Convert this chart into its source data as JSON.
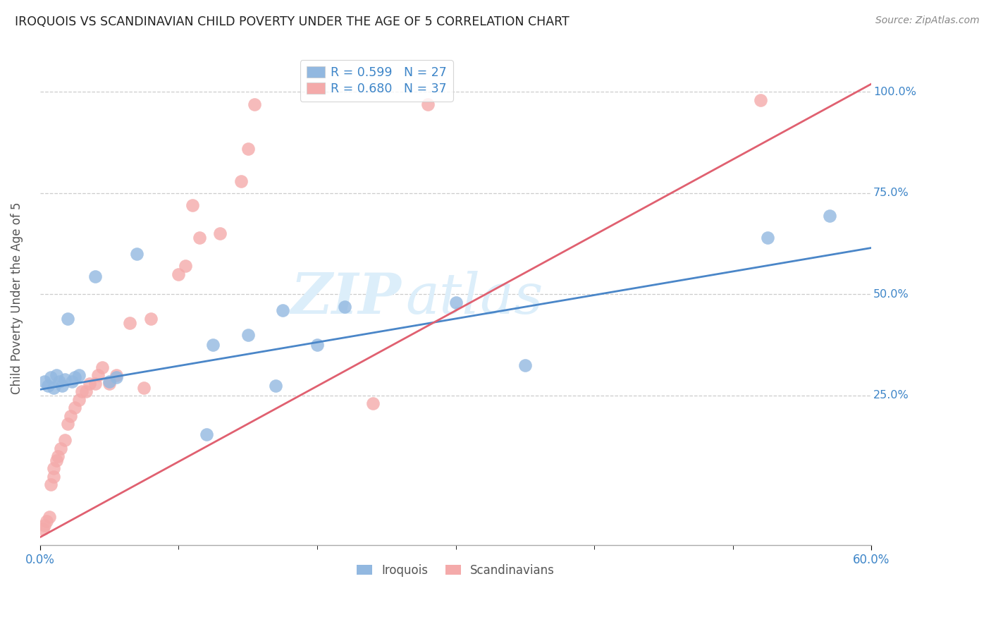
{
  "title": "IROQUOIS VS SCANDINAVIAN CHILD POVERTY UNDER THE AGE OF 5 CORRELATION CHART",
  "source": "Source: ZipAtlas.com",
  "ylabel": "Child Poverty Under the Age of 5",
  "legend_label1": "R = 0.599   N = 27",
  "legend_label2": "R = 0.680   N = 37",
  "iroquois_color": "#92b8e0",
  "scandinavian_color": "#f4aaaa",
  "iroquois_line_color": "#4a86c8",
  "scandinavian_line_color": "#e06070",
  "watermark_top": "ZIP",
  "watermark_bot": "atlas",
  "watermark_color": "#dceefa",
  "xlim": [
    0.0,
    0.6
  ],
  "ylim": [
    -0.12,
    1.1
  ],
  "right_ytick_vals": [
    1.0,
    0.75,
    0.5,
    0.25
  ],
  "right_ytick_labels": [
    "100.0%",
    "75.0%",
    "50.0%",
    "25.0%"
  ],
  "iroquois_x": [
    0.003,
    0.006,
    0.008,
    0.01,
    0.012,
    0.014,
    0.016,
    0.018,
    0.02,
    0.023,
    0.025,
    0.028,
    0.04,
    0.05,
    0.055,
    0.07,
    0.12,
    0.125,
    0.15,
    0.17,
    0.175,
    0.2,
    0.22,
    0.3,
    0.35,
    0.525,
    0.57
  ],
  "iroquois_y": [
    0.285,
    0.275,
    0.295,
    0.27,
    0.3,
    0.285,
    0.275,
    0.29,
    0.44,
    0.285,
    0.295,
    0.3,
    0.545,
    0.285,
    0.295,
    0.6,
    0.155,
    0.375,
    0.4,
    0.275,
    0.46,
    0.375,
    0.47,
    0.48,
    0.325,
    0.64,
    0.695
  ],
  "scandinavian_x": [
    0.002,
    0.003,
    0.005,
    0.007,
    0.008,
    0.01,
    0.01,
    0.012,
    0.013,
    0.015,
    0.018,
    0.02,
    0.022,
    0.025,
    0.028,
    0.03,
    0.033,
    0.036,
    0.04,
    0.042,
    0.045,
    0.05,
    0.055,
    0.065,
    0.075,
    0.08,
    0.1,
    0.105,
    0.11,
    0.115,
    0.13,
    0.145,
    0.15,
    0.155,
    0.24,
    0.28,
    0.52
  ],
  "scandinavian_y": [
    -0.08,
    -0.07,
    -0.06,
    -0.05,
    0.03,
    0.05,
    0.07,
    0.09,
    0.1,
    0.12,
    0.14,
    0.18,
    0.2,
    0.22,
    0.24,
    0.26,
    0.26,
    0.28,
    0.28,
    0.3,
    0.32,
    0.28,
    0.3,
    0.43,
    0.27,
    0.44,
    0.55,
    0.57,
    0.72,
    0.64,
    0.65,
    0.78,
    0.86,
    0.97,
    0.23,
    0.97,
    0.98
  ],
  "iroquois_reg": [
    0.265,
    0.615
  ],
  "scandinavian_reg": [
    -0.1,
    1.02
  ]
}
